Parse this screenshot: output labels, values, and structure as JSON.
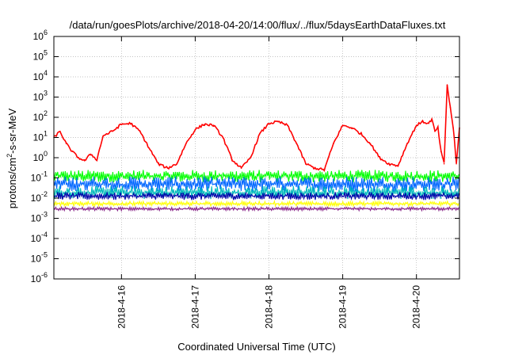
{
  "chart_data": {
    "type": "line",
    "title": "/data/run/goesPlots/archive/2018-04-20/14:00/flux/../flux/5daysEarthDataFluxes.txt",
    "xlabel": "Coordinated Universal Time (UTC)",
    "ylabel_parts": [
      "protons/cm",
      "2",
      "-s-sr-MeV"
    ],
    "y_scale": "log",
    "ylim": [
      1e-06,
      1000000.0
    ],
    "y_ticks": [
      {
        "base": "10",
        "exp": "-6",
        "value": 1e-06
      },
      {
        "base": "10",
        "exp": "-5",
        "value": 1e-05
      },
      {
        "base": "10",
        "exp": "-4",
        "value": 0.0001
      },
      {
        "base": "10",
        "exp": "-3",
        "value": 0.001
      },
      {
        "base": "10",
        "exp": "-2",
        "value": 0.01
      },
      {
        "base": "10",
        "exp": "-1",
        "value": 0.1
      },
      {
        "base": "10",
        "exp": "0",
        "value": 1
      },
      {
        "base": "10",
        "exp": "1",
        "value": 10
      },
      {
        "base": "10",
        "exp": "2",
        "value": 100
      },
      {
        "base": "10",
        "exp": "3",
        "value": 1000
      },
      {
        "base": "10",
        "exp": "4",
        "value": 10000
      },
      {
        "base": "10",
        "exp": "5",
        "value": 100000
      },
      {
        "base": "10",
        "exp": "6",
        "value": 1000000
      }
    ],
    "x_range": [
      "2018-04-15 02:00",
      "2018-04-20 14:00"
    ],
    "x_ticks": [
      "2018-4-16",
      "2018-4-17",
      "2018-4-18",
      "2018-4-19",
      "2018-4-20"
    ],
    "x_tick_dates": [
      "2018-04-16 00:00",
      "2018-04-17 00:00",
      "2018-04-18 00:00",
      "2018-04-19 00:00",
      "2018-04-20 00:00"
    ],
    "grid": true,
    "series": [
      {
        "color": "#ff0000",
        "style": "line",
        "x": [
          "2018-04-15 02:00",
          "2018-04-15 04:00",
          "2018-04-15 06:00",
          "2018-04-15 08:00",
          "2018-04-15 10:00",
          "2018-04-15 12:00",
          "2018-04-15 14:00",
          "2018-04-15 16:00",
          "2018-04-15 18:00",
          "2018-04-15 21:00",
          "2018-04-16 00:00",
          "2018-04-16 03:00",
          "2018-04-16 06:00",
          "2018-04-16 09:00",
          "2018-04-16 12:00",
          "2018-04-16 15:00",
          "2018-04-16 18:00",
          "2018-04-16 21:00",
          "2018-04-17 00:00",
          "2018-04-17 03:00",
          "2018-04-17 06:00",
          "2018-04-17 09:00",
          "2018-04-17 12:00",
          "2018-04-17 15:00",
          "2018-04-17 18:00",
          "2018-04-17 21:00",
          "2018-04-18 00:00",
          "2018-04-18 03:00",
          "2018-04-18 06:00",
          "2018-04-18 09:00",
          "2018-04-18 12:00",
          "2018-04-18 15:00",
          "2018-04-18 18:00",
          "2018-04-18 21:00",
          "2018-04-19 00:00",
          "2018-04-19 03:00",
          "2018-04-19 06:00",
          "2018-04-19 09:00",
          "2018-04-19 12:00",
          "2018-04-19 15:00",
          "2018-04-19 18:00",
          "2018-04-19 21:00",
          "2018-04-20 00:00",
          "2018-04-20 02:00",
          "2018-04-20 04:00",
          "2018-04-20 05:00",
          "2018-04-20 06:00",
          "2018-04-20 07:00",
          "2018-04-20 08:00",
          "2018-04-20 09:00",
          "2018-04-20 10:00",
          "2018-04-20 11:00",
          "2018-04-20 12:00",
          "2018-04-20 13:00",
          "2018-04-20 14:00"
        ],
        "y": [
          10,
          20,
          5,
          2,
          1,
          0.7,
          1.5,
          0.8,
          12,
          20,
          45,
          50,
          20,
          3,
          0.5,
          0.3,
          0.5,
          5,
          25,
          45,
          40,
          10,
          0.8,
          0.3,
          1,
          15,
          50,
          60,
          40,
          5,
          0.5,
          0.3,
          0.25,
          5,
          40,
          30,
          15,
          5,
          1,
          0.5,
          0.4,
          5,
          40,
          60,
          50,
          80,
          20,
          30,
          2,
          0.5,
          4000,
          300,
          30,
          0.5,
          30
        ]
      },
      {
        "color": "#00ff00",
        "style": "band",
        "y_range": [
          0.06,
          0.25
        ]
      },
      {
        "color": "#0066ff",
        "style": "band",
        "y_range": [
          0.02,
          0.12
        ]
      },
      {
        "color": "#00bbbb",
        "style": "band",
        "y_range": [
          0.009,
          0.04
        ]
      },
      {
        "color": "#0000aa",
        "style": "band",
        "y_range": [
          0.008,
          0.02
        ]
      },
      {
        "color": "#ffff00",
        "style": "band",
        "y_range": [
          0.004,
          0.007
        ]
      },
      {
        "color": "#882288",
        "style": "band",
        "y_range": [
          0.0024,
          0.0036
        ]
      }
    ]
  }
}
